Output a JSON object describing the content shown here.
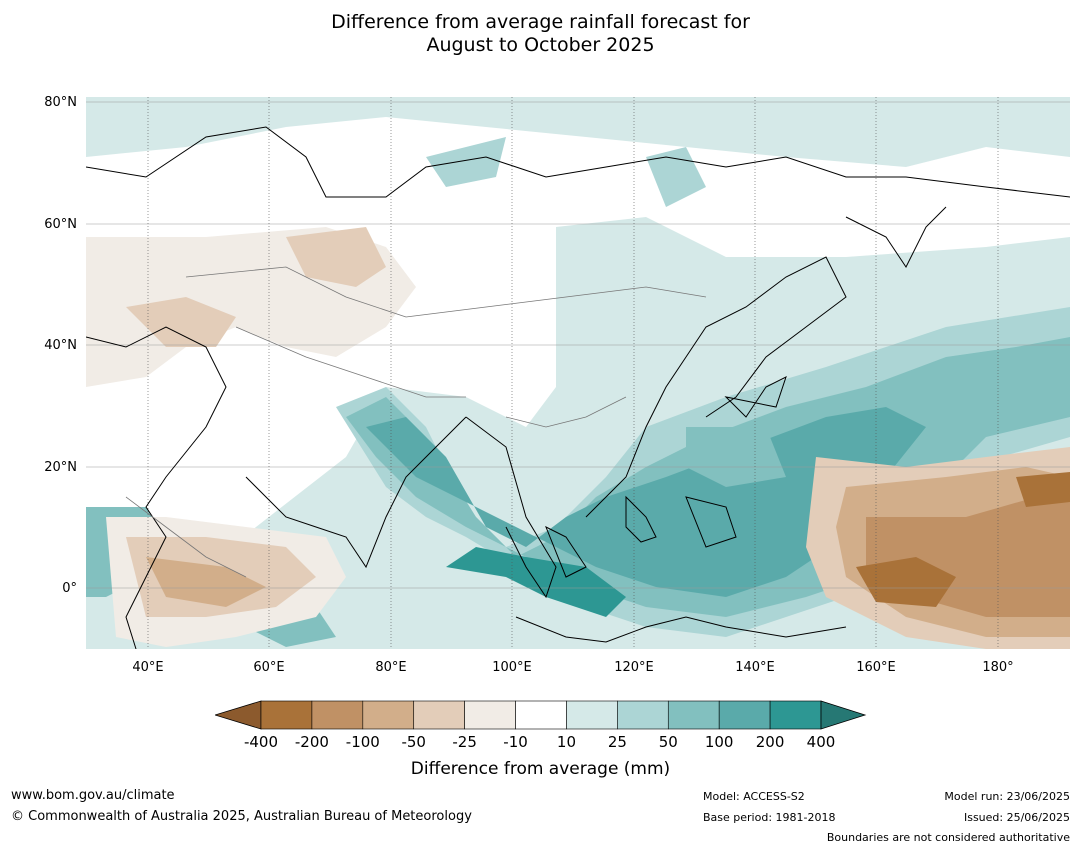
{
  "title": {
    "line1": "Difference from average rainfall forecast for",
    "line2": "August to October 2025"
  },
  "map": {
    "lat_labels": [
      "80°N",
      "60°N",
      "40°N",
      "20°N",
      "0°"
    ],
    "lon_labels": [
      "40°E",
      "60°E",
      "80°E",
      "100°E",
      "120°E",
      "140°E",
      "160°E",
      "180°"
    ],
    "extent": {
      "lon_min": 30,
      "lon_max": 192,
      "lat_min": -10,
      "lat_max": 81
    }
  },
  "colorbar": {
    "ticks": [
      "-400",
      "-200",
      "-100",
      "-50",
      "-25",
      "-10",
      "10",
      "25",
      "50",
      "100",
      "200",
      "400"
    ],
    "colors": {
      "below_min": "#8c5a2d",
      "bins": [
        "#a97239",
        "#c09165",
        "#d2ae8a",
        "#e3cdb9",
        "#f1ece6",
        "#ffffff",
        "#d5e9e8",
        "#acd5d5",
        "#82c0bf",
        "#5aaaaa",
        "#2d9793"
      ],
      "above_max": "#267874"
    },
    "label": "Difference from average (mm)"
  },
  "footer": {
    "website": "www.bom.gov.au/climate",
    "copyright": "© Commonwealth of Australia 2025, Australian Bureau of Meteorology",
    "model": "Model: ACCESS-S2",
    "base_period": "Base period: 1981-2018",
    "model_run": "Model run: 23/06/2025",
    "issued": "Issued: 25/06/2025",
    "disclaimer": "Boundaries are not considered authoritative"
  }
}
